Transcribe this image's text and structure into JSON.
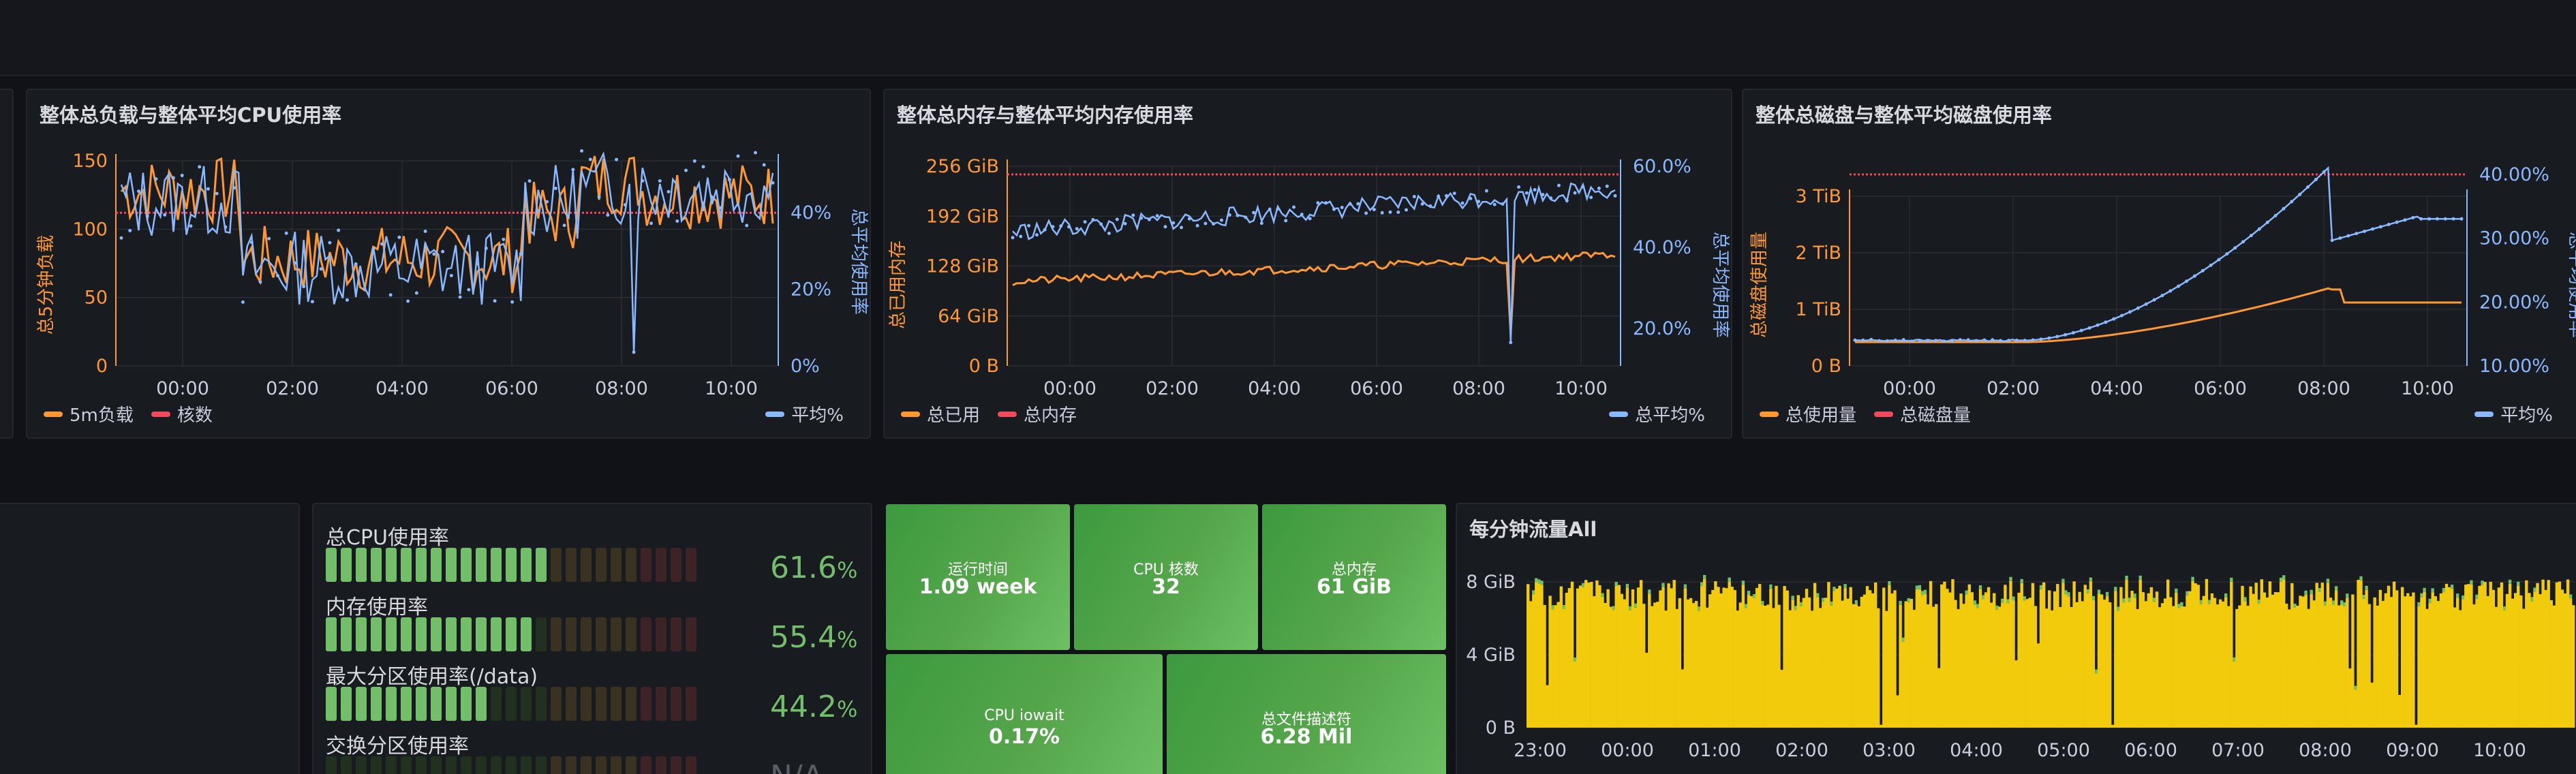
{
  "colors": {
    "background": "#111217",
    "panel": "#181b1f",
    "orange": "#ff9830",
    "blue": "#8ab8ff",
    "red": "#f2495c",
    "green": "#73bf69",
    "yellow": "#f2cc0c"
  },
  "panels": {
    "cpu": {
      "title": "整体总负载与整体平均CPU使用率",
      "left_axis_label": "总5分钟负载",
      "right_axis_label": "总平均使用率",
      "left_ticks": [
        "150",
        "100",
        "50",
        "0"
      ],
      "right_ticks": [
        "40%",
        "20%",
        "0%"
      ],
      "x_ticks": [
        "00:00",
        "02:00",
        "04:00",
        "06:00",
        "08:00",
        "10:00"
      ],
      "legend": {
        "load": "5m负载",
        "cores": "核数",
        "avg": "平均%"
      }
    },
    "memory": {
      "title": "整体总内存与整体平均内存使用率",
      "left_axis_label": "总已用内存",
      "right_axis_label": "总平均使用率",
      "left_ticks": [
        "256 GiB",
        "192 GiB",
        "128 GiB",
        "64 GiB",
        "0 B"
      ],
      "right_ticks": [
        "60.0%",
        "40.0%",
        "20.0%"
      ],
      "x_ticks": [
        "00:00",
        "02:00",
        "04:00",
        "06:00",
        "08:00",
        "10:00"
      ],
      "legend": {
        "used": "总已用",
        "total": "总内存",
        "avg": "总平均%"
      }
    },
    "disk": {
      "title": "整体总磁盘与整体平均磁盘使用率",
      "left_axis_label": "总磁盘使用量",
      "right_axis_label": "总平均使用率",
      "left_ticks": [
        "3 TiB",
        "2 TiB",
        "1 TiB",
        "0 B"
      ],
      "right_ticks": [
        "40.00%",
        "30.00%",
        "20.00%",
        "10.00%"
      ],
      "x_ticks": [
        "00:00",
        "02:00",
        "04:00",
        "06:00",
        "08:00",
        "10:00"
      ],
      "legend": {
        "used": "总使用量",
        "total": "总磁盘量",
        "avg": "平均%"
      }
    },
    "traffic": {
      "title": "每分钟流量All",
      "y_ticks": [
        "8 GiB",
        "4 GiB",
        "0 B"
      ],
      "x_ticks": [
        "23:00",
        "00:00",
        "01:00",
        "02:00",
        "03:00",
        "04:00",
        "05:00",
        "06:00",
        "07:00",
        "08:00",
        "09:00",
        "10:00"
      ]
    }
  },
  "gauges": [
    {
      "label": "总CPU使用率",
      "value": "61.6",
      "unit": "%",
      "fraction": 0.616
    },
    {
      "label": "内存使用率",
      "value": "55.4",
      "unit": "%",
      "fraction": 0.554
    },
    {
      "label": "最大分区使用率(/data)",
      "value": "44.2",
      "unit": "%",
      "fraction": 0.442
    },
    {
      "label": "交换分区使用率",
      "value": "N/A",
      "unit": "",
      "fraction": 0
    }
  ],
  "stats": {
    "uptime": {
      "title": "运行时间",
      "value": "1.09 week"
    },
    "cpu_cores": {
      "title": "CPU 核数",
      "value": "32"
    },
    "total_memory": {
      "title": "总内存",
      "value": "61 GiB"
    },
    "cpu_iowait": {
      "title": "CPU iowait",
      "value": "0.17%"
    },
    "file_descriptors": {
      "title": "总文件描述符",
      "value": "6.28 Mil"
    }
  }
}
